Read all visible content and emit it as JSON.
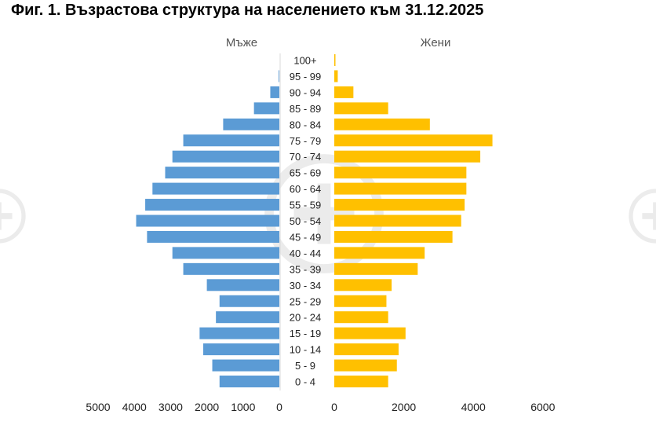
{
  "title": "Фиг. 1. Възрастова структура на населението към 31.12.2025",
  "colors": {
    "male": "#5b9bd5",
    "female": "#ffc000",
    "axis": "#d9d9d9",
    "watermark": "#c8c8c8"
  },
  "chart_data": {
    "type": "bar",
    "orientation": "population-pyramid",
    "categories": [
      "100+",
      "95 - 99",
      "90 - 94",
      "85 - 89",
      "80 - 84",
      "75 - 79",
      "70 - 74",
      "65 - 69",
      "60 - 64",
      "55 - 59",
      "50 - 54",
      "45 - 49",
      "40 - 44",
      "35 - 39",
      "30 - 34",
      "25 - 29",
      "20 - 24",
      "15 - 19",
      "10 - 14",
      "5 - 9",
      "0 - 4"
    ],
    "series": [
      {
        "name": "Мъже",
        "values": [
          0,
          20,
          250,
          700,
          1550,
          2650,
          2950,
          3150,
          3500,
          3700,
          3950,
          3650,
          2950,
          2650,
          2000,
          1650,
          1750,
          2200,
          2100,
          1850,
          1650
        ]
      },
      {
        "name": "Жени",
        "values": [
          20,
          100,
          550,
          1550,
          2750,
          4550,
          4200,
          3800,
          3800,
          3750,
          3650,
          3400,
          2600,
          2400,
          1650,
          1500,
          1550,
          2050,
          1850,
          1800,
          1550
        ]
      }
    ],
    "x_ticks_left": [
      "5000",
      "4000",
      "3000",
      "2000",
      "1000",
      "0"
    ],
    "x_ticks_right": [
      "0",
      "2000",
      "4000",
      "6000"
    ],
    "xlim_left": [
      0,
      5000
    ],
    "xlim_right": [
      0,
      6000
    ]
  }
}
